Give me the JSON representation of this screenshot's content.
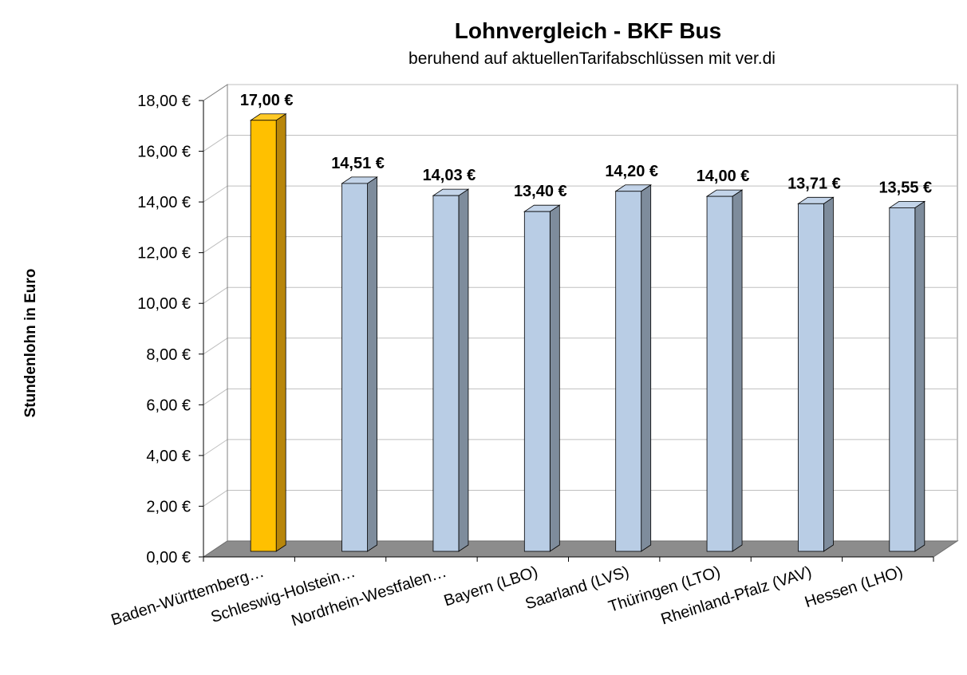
{
  "chart_data": {
    "type": "bar",
    "title": "Lohnvergleich - BKF Bus",
    "subtitle": "beruhend auf aktuellenTarifabschlüssen mit ver.di",
    "ylabel": "Stundenlohn in Euro",
    "xlabel": "",
    "ylim": [
      0,
      18
    ],
    "yticks": [
      "0,00 €",
      "2,00 €",
      "4,00 €",
      "6,00 €",
      "8,00 €",
      "10,00 €",
      "12,00 €",
      "14,00 €",
      "16,00 €",
      "18,00 €"
    ],
    "categories": [
      "Baden-Württemberg…",
      "Schleswig-Holstein…",
      "Nordrhein-Westfalen…",
      "Bayern (LBO)",
      "Saarland (LVS)",
      "Thüringen (LTO)",
      "Rheinland-Pfalz (VAV)",
      "Hessen (LHO)"
    ],
    "values": [
      17.0,
      14.51,
      14.03,
      13.4,
      14.2,
      14.0,
      13.71,
      13.55
    ],
    "data_labels": [
      "17,00 €",
      "14,51 €",
      "14,03 €",
      "13,40 €",
      "14,20 €",
      "14,00 €",
      "13,71 €",
      "13,55 €"
    ],
    "grid": true,
    "legend": "none",
    "colors": {
      "highlight": "#FFC000",
      "highlight_side": "#B8860B",
      "bar": "#B9CDE5",
      "bar_side": "#7E8C9C",
      "floor": "#8C8C8C",
      "grid": "#BFBFBF"
    }
  }
}
